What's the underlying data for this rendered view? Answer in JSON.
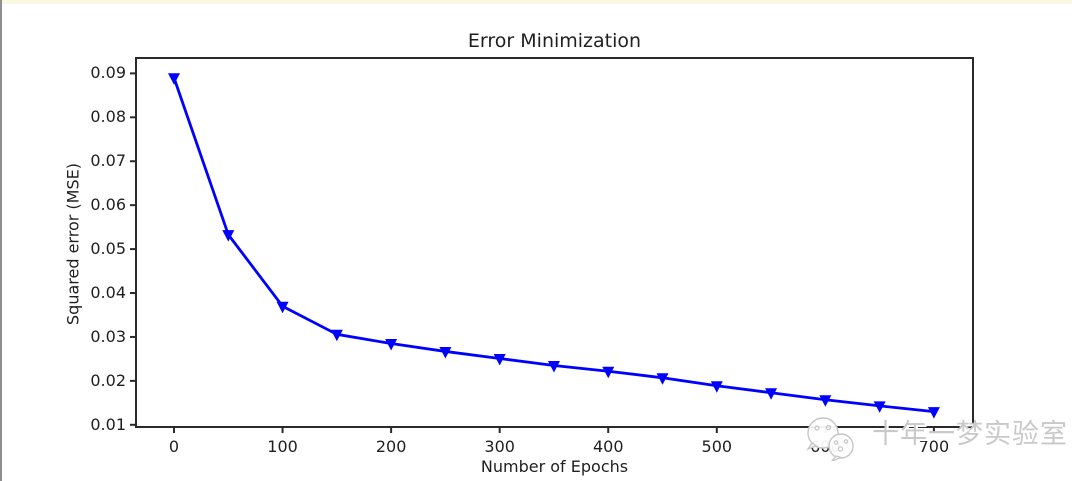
{
  "page": {
    "background": "#ffffff",
    "top_strip_color": "#f9f9e2",
    "left_border_color": "#8f8f8f"
  },
  "chart_data": {
    "type": "line",
    "title": "Error Minimization",
    "xlabel": "Number of Epochs",
    "ylabel": "Squared error (MSE)",
    "x": [
      0,
      50,
      100,
      150,
      200,
      250,
      300,
      350,
      400,
      450,
      500,
      550,
      600,
      650,
      700
    ],
    "y": [
      0.089,
      0.0533,
      0.037,
      0.0306,
      0.0285,
      0.0267,
      0.0251,
      0.0235,
      0.0222,
      0.0207,
      0.0189,
      0.0173,
      0.0157,
      0.0143,
      0.013
    ],
    "line_color": "#0000ff",
    "marker": "triangle-down",
    "marker_color": "#0000ff",
    "xticks": [
      0,
      100,
      200,
      300,
      400,
      500,
      600,
      700
    ],
    "xtick_labels": [
      "0",
      "100",
      "200",
      "300",
      "400",
      "500",
      "600",
      "700"
    ],
    "yticks": [
      0.01,
      0.02,
      0.03,
      0.04,
      0.05,
      0.06,
      0.07,
      0.08,
      0.09
    ],
    "ytick_labels": [
      "0.01",
      "0.02",
      "0.03",
      "0.04",
      "0.05",
      "0.06",
      "0.07",
      "0.08",
      "0.09"
    ],
    "xlim": [
      -35,
      736
    ],
    "ylim": [
      0.0095,
      0.0935
    ],
    "grid": false,
    "legend_position": "none",
    "axis_color": "#2a2a2a",
    "text_color": "#1f1f1f"
  },
  "watermark": {
    "text": "十年一梦实验室",
    "icon": "chat-bubbles-icon",
    "text_color": "#c6c6c6"
  }
}
